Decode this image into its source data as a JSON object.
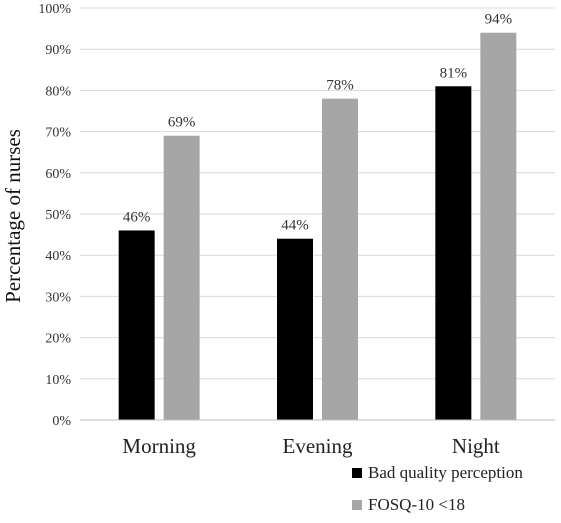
{
  "chart_data": {
    "type": "bar",
    "categories": [
      "Morning",
      "Evening",
      "Night"
    ],
    "series": [
      {
        "name": "Bad quality perception",
        "values": [
          46,
          44,
          81
        ],
        "labels": [
          "46%",
          "44%",
          "81%"
        ],
        "color": "#000000"
      },
      {
        "name": "FOSQ-10 <18",
        "values": [
          69,
          78,
          94
        ],
        "labels": [
          "69%",
          "78%",
          "94%"
        ],
        "color": "#a6a6a6"
      }
    ],
    "ylabel": "Percentage of nurses",
    "xlabel": "",
    "ylim": [
      0,
      100
    ],
    "yticks": [
      0,
      10,
      20,
      30,
      40,
      50,
      60,
      70,
      80,
      90,
      100
    ],
    "ytick_labels": [
      "0%",
      "10%",
      "20%",
      "30%",
      "40%",
      "50%",
      "60%",
      "70%",
      "80%",
      "90%",
      "100%"
    ],
    "grid": true,
    "gridline_color": "#d9d9d9",
    "legend_position": "bottom-right"
  }
}
